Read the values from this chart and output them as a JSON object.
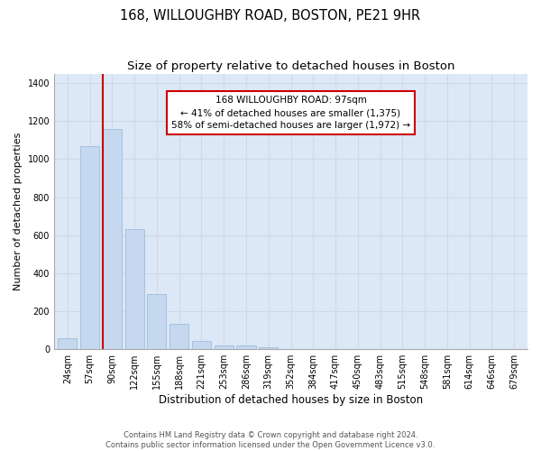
{
  "title": "168, WILLOUGHBY ROAD, BOSTON, PE21 9HR",
  "subtitle": "Size of property relative to detached houses in Boston",
  "xlabel": "Distribution of detached houses by size in Boston",
  "ylabel": "Number of detached properties",
  "categories": [
    "24sqm",
    "57sqm",
    "90sqm",
    "122sqm",
    "155sqm",
    "188sqm",
    "221sqm",
    "253sqm",
    "286sqm",
    "319sqm",
    "352sqm",
    "384sqm",
    "417sqm",
    "450sqm",
    "483sqm",
    "515sqm",
    "548sqm",
    "581sqm",
    "614sqm",
    "646sqm",
    "679sqm"
  ],
  "values": [
    60,
    1070,
    1160,
    630,
    290,
    135,
    45,
    20,
    20,
    10,
    0,
    0,
    0,
    0,
    0,
    0,
    0,
    0,
    0,
    0,
    0
  ],
  "bar_color": "#c5d8ef",
  "bar_edge_color": "#9bbfdb",
  "red_line_index": 2,
  "annotation_line1": "168 WILLOUGHBY ROAD: 97sqm",
  "annotation_line2": "← 41% of detached houses are smaller (1,375)",
  "annotation_line3": "58% of semi-detached houses are larger (1,972) →",
  "annotation_box_color": "#ffffff",
  "annotation_border_color": "#cc0000",
  "ylim": [
    0,
    1450
  ],
  "yticks": [
    0,
    200,
    400,
    600,
    800,
    1000,
    1200,
    1400
  ],
  "grid_color": "#d0d8e8",
  "background_color": "#dce8f5",
  "footnote": "Contains HM Land Registry data © Crown copyright and database right 2024.\nContains public sector information licensed under the Open Government Licence v3.0.",
  "title_fontsize": 10.5,
  "subtitle_fontsize": 9.5,
  "xlabel_fontsize": 8.5,
  "ylabel_fontsize": 8,
  "tick_fontsize": 7,
  "annotation_fontsize": 7.5,
  "footnote_fontsize": 6
}
